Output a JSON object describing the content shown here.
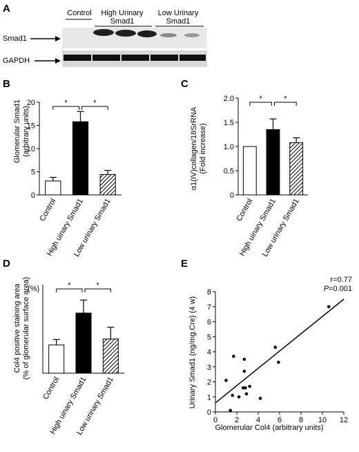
{
  "panel_letters": [
    "A",
    "B",
    "C",
    "D",
    "E"
  ],
  "blot": {
    "groups": [
      "Control",
      "High Urinary Smad1",
      "Low Urinary Smad1"
    ],
    "rows": [
      "Smad1",
      "GAPDH"
    ]
  },
  "chart_data": [
    {
      "panel": "B",
      "type": "bar",
      "categories": [
        "Control",
        "High uinary Smad1",
        "Low urinary Smad1"
      ],
      "values": [
        3.0,
        15.8,
        4.4
      ],
      "errors": [
        0.8,
        2.2,
        0.9
      ],
      "fills": [
        "white",
        "black",
        "hatched"
      ],
      "ylabel": "Glomerular Smad1",
      "ylabel2": "(arbitrary units)",
      "ylim": [
        0,
        20
      ],
      "yticks": [
        0,
        5,
        10,
        15,
        20
      ],
      "significance": [
        [
          "Control",
          "High uinary Smad1",
          "*"
        ],
        [
          "High uinary Smad1",
          "Low urinary Smad1",
          "*"
        ]
      ]
    },
    {
      "panel": "C",
      "type": "bar",
      "categories": [
        "Control",
        "High uinary Smad1",
        "Low urinary Smad1"
      ],
      "values": [
        1.0,
        1.35,
        1.08
      ],
      "errors": [
        0.0,
        0.22,
        0.1
      ],
      "fills": [
        "white",
        "black",
        "hatched"
      ],
      "ylabel": "α1(IV)collagen/18SrRNA",
      "ylabel2": "(Fold increase)",
      "ylim": [
        0,
        2.0
      ],
      "yticks": [
        "0",
        "0.5",
        "1.0",
        "1.5",
        "2.0"
      ],
      "significance": [
        [
          "Control",
          "High uinary Smad1",
          "*"
        ],
        [
          "High uinary Smad1",
          "Low urinary Smad1",
          "*"
        ]
      ]
    },
    {
      "panel": "D",
      "type": "bar",
      "categories": [
        "Control",
        "High uinary Smad1",
        "Low urinary Smad1"
      ],
      "values": [
        4.8,
        10.2,
        5.8
      ],
      "errors": [
        0.9,
        2.2,
        2.0
      ],
      "fills": [
        "white",
        "black",
        "hatched"
      ],
      "ylabel": "Col4 positive staining area",
      "ylabel2": "(% of glomerular surface area)",
      "unit": "(%)",
      "ylim": [
        0,
        15
      ],
      "yticks": [],
      "significance": [
        [
          "Control",
          "High uinary Smad1",
          "*"
        ],
        [
          "High uinary Smad1",
          "Low urinary Smad1",
          "*"
        ]
      ]
    },
    {
      "panel": "E",
      "type": "scatter",
      "x": [
        1.0,
        1.4,
        1.6,
        1.7,
        2.2,
        2.6,
        2.7,
        2.7,
        2.8,
        2.9,
        3.2,
        4.2,
        5.6,
        5.9,
        10.6
      ],
      "y": [
        2.1,
        0.1,
        1.1,
        3.7,
        1.0,
        1.6,
        2.7,
        3.5,
        1.6,
        1.2,
        1.7,
        0.9,
        4.3,
        3.3,
        7.0
      ],
      "xlabel": "Glomerular Col4 (arbitrary units)",
      "ylabel": "Urinary Smad1 (ng/mg.Cre) (4 w)",
      "xlim": [
        0,
        12
      ],
      "ylim": [
        0,
        8
      ],
      "xticks": [
        0,
        2,
        4,
        6,
        8,
        10,
        12
      ],
      "yticks": [
        0,
        1,
        2,
        3,
        4,
        5,
        6,
        7,
        8
      ],
      "fit_line": [
        [
          0,
          0.6
        ],
        [
          12,
          7.5
        ]
      ],
      "annotation_r": "r=0.77",
      "annotation_p_letter": "P",
      "annotation_p_value": "=0.001"
    }
  ]
}
